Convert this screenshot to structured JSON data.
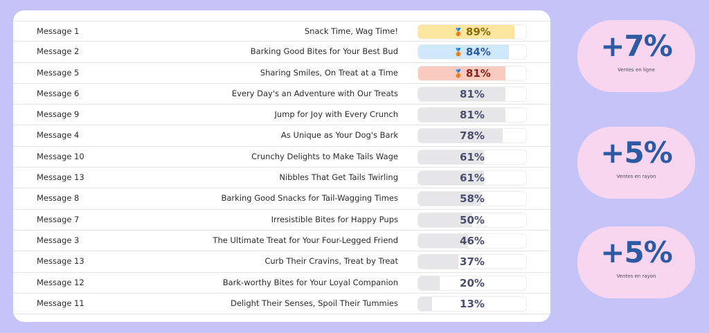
{
  "rows": [
    {
      "id": "Message 1",
      "text": "Snack Time, Wag Time!",
      "value": "89%",
      "pct": 89,
      "medal": "🥉",
      "fill": "#fbe6a0",
      "val_color": "#8a6a08"
    },
    {
      "id": "Message 2",
      "text": "Barking Good Bites for Your Best Bud",
      "value": "84%",
      "pct": 84,
      "medal": "🥉",
      "fill": "#cfe9fb",
      "val_color": "#2d5aa3"
    },
    {
      "id": "Message 5",
      "text": "Sharing Smiles, On Treat at a Time",
      "value": "81%",
      "pct": 81,
      "medal": "🥉",
      "fill": "#f9cbc0",
      "val_color": "#8b1d14"
    },
    {
      "id": "Message 6",
      "text": "Every Day's an Adventure with Our Treats",
      "value": "81%",
      "pct": 81,
      "medal": "",
      "fill": "#e6e6e9",
      "val_color": "#4b4d6e"
    },
    {
      "id": "Message 9",
      "text": "Jump for Joy with Every Crunch",
      "value": "81%",
      "pct": 81,
      "medal": "",
      "fill": "#e6e6e9",
      "val_color": "#4b4d6e"
    },
    {
      "id": "Message 4",
      "text": "As Unique as Your Dog's Bark",
      "value": "78%",
      "pct": 78,
      "medal": "",
      "fill": "#e6e6e9",
      "val_color": "#4b4d6e"
    },
    {
      "id": "Message 10",
      "text": "Crunchy Delights to Make Tails Wage",
      "value": "61%",
      "pct": 61,
      "medal": "",
      "fill": "#e6e6e9",
      "val_color": "#4b4d6e"
    },
    {
      "id": "Message 13",
      "text": "Nibbles That Get Tails Twirling",
      "value": "61%",
      "pct": 61,
      "medal": "",
      "fill": "#e6e6e9",
      "val_color": "#4b4d6e"
    },
    {
      "id": "Message 8",
      "text": "Barking Good Snacks for Tail-Wagging Times",
      "value": "58%",
      "pct": 58,
      "medal": "",
      "fill": "#e6e6e9",
      "val_color": "#4b4d6e"
    },
    {
      "id": "Message 7",
      "text": "Irresistible Bites for Happy Pups",
      "value": "50%",
      "pct": 50,
      "medal": "",
      "fill": "#e6e6e9",
      "val_color": "#4b4d6e"
    },
    {
      "id": "Message 3",
      "text": "The Ultimate Treat for Your Four-Legged Friend",
      "value": "46%",
      "pct": 46,
      "medal": "",
      "fill": "#e6e6e9",
      "val_color": "#4b4d6e"
    },
    {
      "id": "Message 13",
      "text": "Curb Their Cravins, Treat by Treat",
      "value": "37%",
      "pct": 37,
      "medal": "",
      "fill": "#e6e6e9",
      "val_color": "#4b4d6e"
    },
    {
      "id": "Message 12",
      "text": "Bark-worthy Bites for Your Loyal Companion",
      "value": "20%",
      "pct": 20,
      "medal": "",
      "fill": "#e6e6e9",
      "val_color": "#4b4d6e"
    },
    {
      "id": "Message 11",
      "text": "Delight Their Senses, Spoil Their Tummies",
      "value": "13%",
      "pct": 13,
      "medal": "",
      "fill": "#e6e6e9",
      "val_color": "#4b4d6e"
    }
  ],
  "stats": [
    {
      "value": "+7%",
      "label": "Ventes en ligne"
    },
    {
      "value": "+5%",
      "label": "Ventes en rayon"
    },
    {
      "value": "+5%",
      "label": "Ventes en rayon"
    }
  ],
  "colors": {
    "background": "#c5c3f7",
    "stat_bubble": "#f9d6ef",
    "stat_text": "#2d5aa3"
  }
}
